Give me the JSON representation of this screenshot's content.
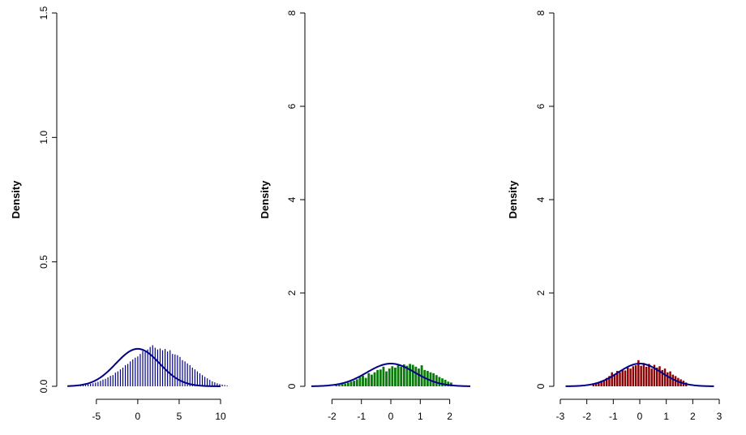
{
  "chart_data": [
    {
      "type": "bar",
      "ylabel": "Density",
      "xlim": [
        -9,
        10
      ],
      "ylim": [
        0,
        1.5
      ],
      "xticks": [
        "-5",
        "0",
        "5",
        "10"
      ],
      "xtick_values": [
        -5,
        0,
        5,
        10
      ],
      "yticks": [
        "0.0",
        "0.5",
        "1.0",
        "1.5"
      ],
      "ytick_values": [
        0,
        0.5,
        1.0,
        1.5
      ],
      "bar_color": "#00008B",
      "bar_style": "thin-lines",
      "curve_color": "#00008B",
      "bin_width": 0.3,
      "bins_start": -7.05,
      "hist_values": [
        0.003,
        0.004,
        0.006,
        0.008,
        0.01,
        0.012,
        0.015,
        0.018,
        0.022,
        0.027,
        0.03,
        0.036,
        0.042,
        0.045,
        0.055,
        0.06,
        0.068,
        0.075,
        0.085,
        0.09,
        0.1,
        0.108,
        0.115,
        0.12,
        0.13,
        0.142,
        0.138,
        0.148,
        0.158,
        0.165,
        0.155,
        0.148,
        0.152,
        0.145,
        0.15,
        0.14,
        0.145,
        0.13,
        0.128,
        0.125,
        0.118,
        0.105,
        0.1,
        0.092,
        0.085,
        0.075,
        0.068,
        0.06,
        0.052,
        0.045,
        0.038,
        0.032,
        0.026,
        0.02,
        0.016,
        0.012,
        0.009,
        0.007,
        0.005,
        0.003
      ],
      "curve": {
        "mean": 0,
        "sd": 2.65,
        "x_range": [
          -8.5,
          10
        ]
      }
    },
    {
      "type": "bar",
      "ylabel": "Density",
      "xlim": [
        -2.7,
        2.7
      ],
      "ylim": [
        0,
        8
      ],
      "xticks": [
        "-2",
        "-1",
        "0",
        "1",
        "2"
      ],
      "xtick_values": [
        -2,
        -1,
        0,
        1,
        2
      ],
      "yticks": [
        "0",
        "2",
        "4",
        "6",
        "8"
      ],
      "ytick_values": [
        0,
        2,
        4,
        6,
        8
      ],
      "bar_color": "#0A7A0A",
      "bar_style": "filled",
      "curve_color": "#00008B",
      "bin_width": 0.1,
      "bins_start": -1.9,
      "hist_values": [
        0.02,
        0.03,
        0.05,
        0.06,
        0.08,
        0.1,
        0.12,
        0.15,
        0.2,
        0.23,
        0.18,
        0.28,
        0.25,
        0.3,
        0.35,
        0.36,
        0.42,
        0.32,
        0.38,
        0.43,
        0.4,
        0.45,
        0.42,
        0.47,
        0.44,
        0.48,
        0.46,
        0.42,
        0.38,
        0.45,
        0.35,
        0.33,
        0.3,
        0.28,
        0.24,
        0.2,
        0.17,
        0.14,
        0.1,
        0.08
      ],
      "curve": {
        "mean": 0,
        "sd": 0.82,
        "x_range": [
          -2.7,
          2.7
        ]
      }
    },
    {
      "type": "bar",
      "ylabel": "Density",
      "xlim": [
        -3,
        3
      ],
      "ylim": [
        0,
        8
      ],
      "xticks": [
        "-3",
        "-2",
        "-1",
        "0",
        "1",
        "2",
        "3"
      ],
      "xtick_values": [
        -3,
        -2,
        -1,
        0,
        1,
        2,
        3
      ],
      "yticks": [
        "0",
        "2",
        "4",
        "6",
        "8"
      ],
      "ytick_values": [
        0,
        2,
        4,
        6,
        8
      ],
      "bar_color": "#8B0000",
      "bar_style": "filled",
      "curve_color": "#00008B",
      "bin_width": 0.1,
      "bins_start": -1.8,
      "hist_values": [
        0.04,
        0.06,
        0.08,
        0.12,
        0.14,
        0.18,
        0.22,
        0.3,
        0.26,
        0.33,
        0.3,
        0.36,
        0.34,
        0.4,
        0.38,
        0.43,
        0.45,
        0.56,
        0.44,
        0.5,
        0.42,
        0.48,
        0.38,
        0.46,
        0.4,
        0.43,
        0.35,
        0.38,
        0.3,
        0.32,
        0.25,
        0.22,
        0.18,
        0.15,
        0.12,
        0.08
      ],
      "curve": {
        "mean": 0,
        "sd": 0.82,
        "x_range": [
          -2.8,
          2.8
        ]
      }
    }
  ]
}
